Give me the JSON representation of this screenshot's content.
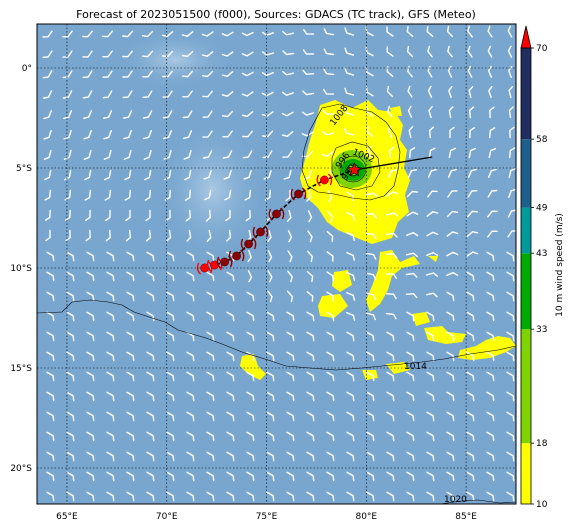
{
  "title": "Forecast of 2023051500 (f000), Sources: GDACS (TC track), GFS (Meteo)",
  "map": {
    "lon_range": [
      63.5,
      87.5
    ],
    "lat_range": [
      -21.8,
      2.2
    ],
    "lon_ticks": [
      {
        "value": 65,
        "label": "65°E"
      },
      {
        "value": 70,
        "label": "70°E"
      },
      {
        "value": 75,
        "label": "75°E"
      },
      {
        "value": 80,
        "label": "80°E"
      },
      {
        "value": 85,
        "label": "85°E"
      }
    ],
    "lat_ticks": [
      {
        "value": 0,
        "label": "0°"
      },
      {
        "value": -5,
        "label": "5°S"
      },
      {
        "value": -10,
        "label": "10°S"
      },
      {
        "value": -15,
        "label": "15°S"
      },
      {
        "value": -20,
        "label": "20°S"
      }
    ],
    "grid": true,
    "ocean_color": "#78a6cf"
  },
  "colorbar": {
    "label": "10 m wind speed (m/s)",
    "levels": [
      {
        "value": 10,
        "label": "10",
        "color": "#ffff00"
      },
      {
        "value": 18,
        "label": "18",
        "color": "#7fd400"
      },
      {
        "value": 33,
        "label": "33",
        "color": "#00aa00"
      },
      {
        "value": 43,
        "label": "43",
        "color": "#009a9a"
      },
      {
        "value": 49,
        "label": "49",
        "color": "#1f5f8b"
      },
      {
        "value": 58,
        "label": "58",
        "color": "#1f2d60"
      },
      {
        "value": 70,
        "label": "70",
        "color": "#ff0000"
      }
    ],
    "extend_color": "#ff0000"
  },
  "isobars": [
    {
      "value": "1008",
      "label": "1008"
    },
    {
      "value": "1002",
      "label": "1002"
    },
    {
      "value": "996",
      "label": "996"
    },
    {
      "value": "990",
      "label": "990"
    },
    {
      "value": "1014",
      "label": "1014"
    },
    {
      "value": "1020",
      "label": "1020"
    }
  ],
  "track": {
    "center": {
      "lon": 79.4,
      "lat": -5.1
    },
    "past_points": [
      {
        "lon": 71.9,
        "lat": -10.0
      },
      {
        "lon": 72.4,
        "lat": -9.85
      },
      {
        "lon": 72.9,
        "lat": -9.7
      },
      {
        "lon": 73.5,
        "lat": -9.4
      },
      {
        "lon": 74.1,
        "lat": -8.8
      },
      {
        "lon": 74.7,
        "lat": -8.2
      },
      {
        "lon": 75.5,
        "lat": -7.3
      },
      {
        "lon": 76.6,
        "lat": -6.3
      },
      {
        "lon": 77.9,
        "lat": -5.6
      }
    ],
    "forecast_end": {
      "lon": 83.3,
      "lat": -4.45
    }
  }
}
